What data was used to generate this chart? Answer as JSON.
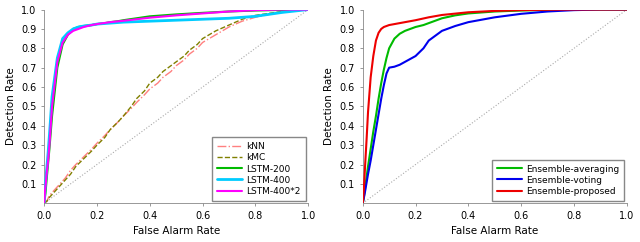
{
  "fig_width": 6.4,
  "fig_height": 2.42,
  "dpi": 100,
  "background_color": "#ffffff",
  "subplot1": {
    "xlabel": "False Alarm Rate",
    "ylabel": "Detection Rate",
    "xlim": [
      0,
      1
    ],
    "ylim": [
      0,
      1
    ],
    "xticks": [
      0,
      0.2,
      0.4,
      0.6,
      0.8,
      1.0
    ],
    "yticks": [
      0.1,
      0.2,
      0.3,
      0.4,
      0.5,
      0.6,
      0.7,
      0.8,
      0.9,
      1.0
    ],
    "tick_labelsize": 7,
    "curves": {
      "kNN": {
        "color": "#FF8080",
        "linestyle": "-.",
        "linewidth": 1.0,
        "x": [
          0.0,
          0.01,
          0.02,
          0.04,
          0.06,
          0.08,
          0.1,
          0.12,
          0.15,
          0.18,
          0.2,
          0.23,
          0.25,
          0.28,
          0.3,
          0.33,
          0.35,
          0.38,
          0.4,
          0.43,
          0.45,
          0.48,
          0.5,
          0.53,
          0.55,
          0.58,
          0.6,
          0.65,
          0.7,
          0.75,
          0.8,
          0.85,
          0.9,
          0.95,
          1.0
        ],
        "y": [
          0.0,
          0.01,
          0.04,
          0.07,
          0.1,
          0.13,
          0.17,
          0.2,
          0.24,
          0.28,
          0.31,
          0.35,
          0.38,
          0.42,
          0.45,
          0.49,
          0.52,
          0.56,
          0.59,
          0.62,
          0.65,
          0.68,
          0.71,
          0.74,
          0.77,
          0.8,
          0.83,
          0.87,
          0.91,
          0.94,
          0.96,
          0.975,
          0.985,
          0.993,
          1.0
        ]
      },
      "kMC": {
        "color": "#808000",
        "linestyle": "--",
        "linewidth": 1.0,
        "x": [
          0.0,
          0.01,
          0.02,
          0.04,
          0.06,
          0.08,
          0.1,
          0.12,
          0.15,
          0.18,
          0.2,
          0.23,
          0.25,
          0.28,
          0.3,
          0.33,
          0.35,
          0.38,
          0.4,
          0.43,
          0.45,
          0.48,
          0.5,
          0.53,
          0.55,
          0.58,
          0.6,
          0.65,
          0.7,
          0.75,
          0.8,
          0.85,
          0.9,
          0.95,
          1.0
        ],
        "y": [
          0.0,
          0.01,
          0.03,
          0.06,
          0.09,
          0.12,
          0.15,
          0.19,
          0.23,
          0.27,
          0.3,
          0.34,
          0.38,
          0.42,
          0.45,
          0.5,
          0.54,
          0.58,
          0.62,
          0.65,
          0.68,
          0.71,
          0.73,
          0.76,
          0.79,
          0.82,
          0.85,
          0.89,
          0.92,
          0.95,
          0.97,
          0.98,
          0.99,
          0.995,
          1.0
        ]
      },
      "LSTM-200": {
        "color": "#00BB00",
        "linestyle": "-",
        "linewidth": 1.5,
        "x": [
          0.0,
          0.005,
          0.01,
          0.02,
          0.03,
          0.05,
          0.07,
          0.09,
          0.11,
          0.13,
          0.15,
          0.18,
          0.2,
          0.23,
          0.25,
          0.28,
          0.3,
          0.35,
          0.4,
          0.5,
          0.6,
          0.7,
          0.8,
          0.9,
          1.0
        ],
        "y": [
          0.0,
          0.05,
          0.13,
          0.28,
          0.45,
          0.7,
          0.82,
          0.87,
          0.9,
          0.91,
          0.915,
          0.92,
          0.925,
          0.93,
          0.935,
          0.94,
          0.945,
          0.955,
          0.965,
          0.975,
          0.983,
          0.99,
          0.995,
          0.998,
          1.0
        ]
      },
      "LSTM-400": {
        "color": "#00CCFF",
        "linestyle": "-",
        "linewidth": 2.0,
        "x": [
          0.0,
          0.003,
          0.006,
          0.01,
          0.015,
          0.02,
          0.03,
          0.05,
          0.07,
          0.09,
          0.11,
          0.13,
          0.15,
          0.18,
          0.2,
          0.25,
          0.3,
          0.4,
          0.5,
          0.6,
          0.7,
          0.8,
          0.85,
          0.9,
          1.0
        ],
        "y": [
          0.0,
          0.07,
          0.12,
          0.18,
          0.26,
          0.35,
          0.55,
          0.75,
          0.85,
          0.88,
          0.9,
          0.91,
          0.915,
          0.92,
          0.925,
          0.93,
          0.935,
          0.94,
          0.945,
          0.95,
          0.955,
          0.965,
          0.975,
          0.985,
          1.0
        ]
      },
      "LSTM-400*2": {
        "color": "#FF00FF",
        "linestyle": "-",
        "linewidth": 1.5,
        "x": [
          0.0,
          0.003,
          0.006,
          0.01,
          0.015,
          0.02,
          0.03,
          0.05,
          0.07,
          0.09,
          0.11,
          0.13,
          0.15,
          0.18,
          0.2,
          0.25,
          0.3,
          0.4,
          0.5,
          0.6,
          0.7,
          0.8,
          0.9,
          1.0
        ],
        "y": [
          0.0,
          0.06,
          0.1,
          0.16,
          0.22,
          0.3,
          0.5,
          0.73,
          0.83,
          0.87,
          0.89,
          0.9,
          0.91,
          0.92,
          0.925,
          0.935,
          0.942,
          0.958,
          0.97,
          0.98,
          0.99,
          0.997,
          1.0,
          1.0
        ]
      }
    },
    "legend_order": [
      "kNN",
      "kMC",
      "LSTM-200",
      "LSTM-400",
      "LSTM-400*2"
    ]
  },
  "subplot2": {
    "xlabel": "False Alarm Rate",
    "ylabel": "Detection Rate",
    "xlim": [
      0,
      1
    ],
    "ylim": [
      0,
      1
    ],
    "xticks": [
      0,
      0.2,
      0.4,
      0.6,
      0.8,
      1.0
    ],
    "yticks": [
      0.1,
      0.2,
      0.3,
      0.4,
      0.5,
      0.6,
      0.7,
      0.8,
      0.9,
      1.0
    ],
    "tick_labelsize": 7,
    "curves": {
      "Ensemble-averaging": {
        "color": "#00BB00",
        "linestyle": "-",
        "linewidth": 1.5,
        "x": [
          0.0,
          0.003,
          0.006,
          0.01,
          0.015,
          0.02,
          0.03,
          0.04,
          0.05,
          0.06,
          0.07,
          0.08,
          0.09,
          0.1,
          0.12,
          0.14,
          0.16,
          0.18,
          0.2,
          0.23,
          0.25,
          0.28,
          0.3,
          0.35,
          0.4,
          0.5,
          0.6,
          0.7,
          0.8,
          0.9,
          1.0
        ],
        "y": [
          0.0,
          0.02,
          0.05,
          0.09,
          0.14,
          0.19,
          0.28,
          0.37,
          0.45,
          0.54,
          0.62,
          0.69,
          0.75,
          0.8,
          0.85,
          0.875,
          0.89,
          0.9,
          0.91,
          0.92,
          0.93,
          0.945,
          0.955,
          0.97,
          0.98,
          0.99,
          0.995,
          0.998,
          1.0,
          1.0,
          1.0
        ]
      },
      "Ensemble-voting": {
        "color": "#0000EE",
        "linestyle": "-",
        "linewidth": 1.5,
        "x": [
          0.0,
          0.003,
          0.006,
          0.01,
          0.015,
          0.02,
          0.03,
          0.04,
          0.05,
          0.06,
          0.07,
          0.08,
          0.09,
          0.1,
          0.12,
          0.14,
          0.16,
          0.18,
          0.2,
          0.23,
          0.25,
          0.28,
          0.3,
          0.35,
          0.4,
          0.5,
          0.6,
          0.7,
          0.8,
          0.9,
          1.0
        ],
        "y": [
          0.0,
          0.02,
          0.04,
          0.07,
          0.11,
          0.15,
          0.22,
          0.3,
          0.38,
          0.46,
          0.54,
          0.61,
          0.67,
          0.7,
          0.705,
          0.715,
          0.73,
          0.745,
          0.76,
          0.8,
          0.84,
          0.87,
          0.89,
          0.915,
          0.935,
          0.96,
          0.978,
          0.99,
          0.997,
          1.0,
          1.0
        ]
      },
      "Ensemble-proposed": {
        "color": "#EE0000",
        "linestyle": "-",
        "linewidth": 1.5,
        "x": [
          0.0,
          0.002,
          0.004,
          0.006,
          0.008,
          0.01,
          0.015,
          0.02,
          0.03,
          0.04,
          0.05,
          0.06,
          0.07,
          0.08,
          0.09,
          0.1,
          0.12,
          0.14,
          0.16,
          0.18,
          0.2,
          0.25,
          0.3,
          0.4,
          0.5,
          0.6,
          0.7,
          0.8,
          0.9,
          1.0
        ],
        "y": [
          0.0,
          0.03,
          0.07,
          0.12,
          0.17,
          0.22,
          0.34,
          0.47,
          0.65,
          0.76,
          0.84,
          0.88,
          0.9,
          0.91,
          0.915,
          0.92,
          0.925,
          0.93,
          0.935,
          0.94,
          0.945,
          0.96,
          0.972,
          0.986,
          0.993,
          0.997,
          0.999,
          1.0,
          1.0,
          1.0
        ]
      }
    },
    "legend_order": [
      "Ensemble-averaging",
      "Ensemble-voting",
      "Ensemble-proposed"
    ]
  }
}
